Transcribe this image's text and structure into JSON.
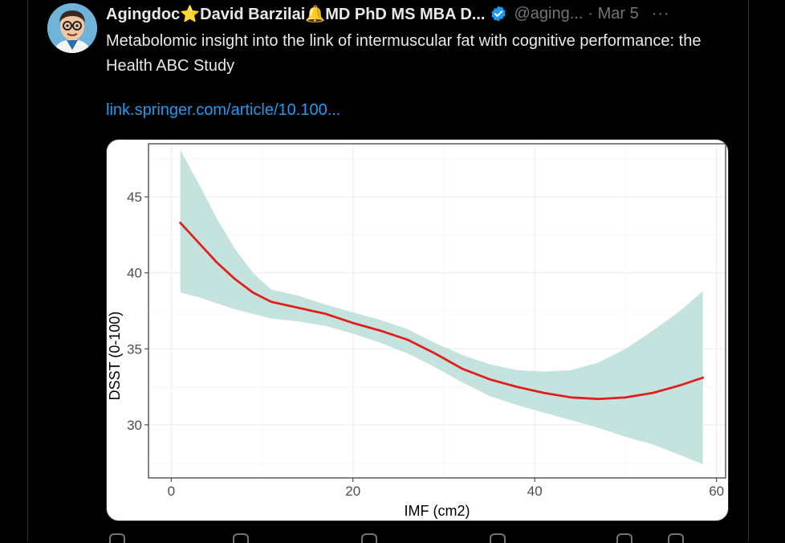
{
  "tweet": {
    "display_name_start": "Agingdoc",
    "star_emoji": "⭐",
    "display_name_mid": "David Barzilai",
    "bell_emoji": "🔔",
    "display_name_end": "MD PhD MS MBA D...",
    "handle": "@aging...",
    "separator": "·",
    "date": "Mar 5",
    "more_label": "···",
    "text": "Metabolomic insight into the link of intermuscular fat with cognitive performance: the Health ABC Study",
    "link": "link.springer.com/article/10.100..."
  },
  "colors": {
    "background": "#000000",
    "text": "#e7e9ea",
    "muted": "#71767b",
    "link": "#1d9bf0",
    "verified": "#1d9bf0",
    "ribbon": "#c5e3de",
    "curve": "#e0201b"
  },
  "icons": [
    "avatar-cartoon",
    "verified-badge-icon",
    "more-icon",
    "reply-icon",
    "retweet-icon",
    "like-icon",
    "views-icon",
    "bookmark-icon",
    "share-icon"
  ],
  "chart_data": {
    "type": "line",
    "title": "",
    "xlabel": "IMF (cm2)",
    "ylabel": "DSST (0-100)",
    "xlim": [
      -2.5,
      61
    ],
    "ylim": [
      26.5,
      48.5
    ],
    "xticks": [
      0,
      20,
      40,
      60
    ],
    "yticks": [
      30,
      35,
      40,
      45
    ],
    "grid": true,
    "series": [
      {
        "x": [
          1,
          3,
          5,
          7,
          9,
          11,
          14,
          17,
          20,
          23,
          26,
          29,
          32,
          35,
          38,
          41,
          44,
          47,
          50,
          53,
          56,
          58.5
        ],
        "values": [
          43.3,
          42.0,
          40.7,
          39.6,
          38.7,
          38.1,
          37.7,
          37.3,
          36.7,
          36.2,
          35.6,
          34.7,
          33.7,
          33.0,
          32.5,
          32.1,
          31.8,
          31.7,
          31.8,
          32.1,
          32.6,
          33.1
        ]
      }
    ],
    "ribbon": {
      "x": [
        1,
        3,
        5,
        7,
        9,
        11,
        14,
        17,
        20,
        23,
        26,
        29,
        32,
        35,
        38,
        41,
        44,
        47,
        50,
        53,
        56,
        58.5
      ],
      "upper": [
        48.1,
        45.9,
        43.6,
        41.6,
        40.0,
        38.9,
        38.5,
        37.9,
        37.4,
        36.9,
        36.3,
        35.4,
        34.6,
        34.0,
        33.6,
        33.5,
        33.6,
        34.1,
        35.0,
        36.2,
        37.5,
        38.8
      ],
      "lower": [
        38.7,
        38.4,
        38.0,
        37.6,
        37.3,
        37.0,
        36.8,
        36.5,
        36.0,
        35.4,
        34.7,
        33.8,
        32.8,
        31.9,
        31.3,
        30.8,
        30.3,
        29.8,
        29.2,
        28.7,
        28.0,
        27.4
      ]
    }
  }
}
